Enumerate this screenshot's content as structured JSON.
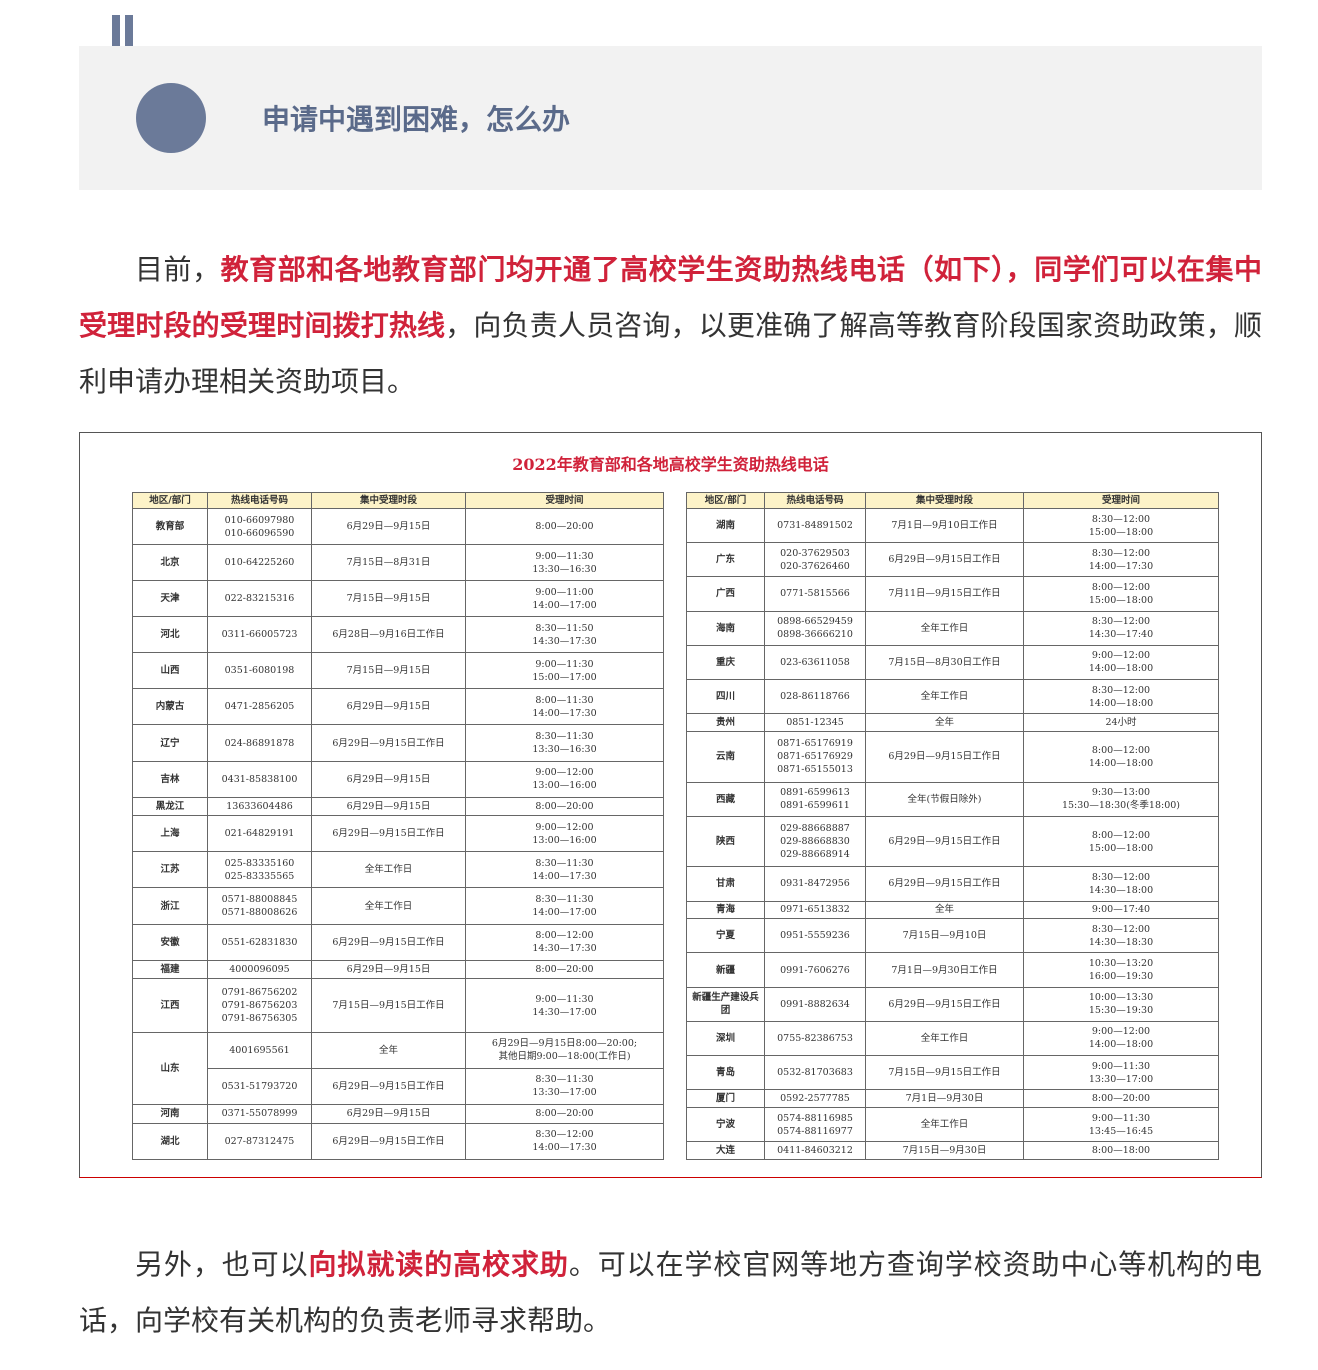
{
  "section": {
    "title": "申请中遇到困难，怎么办"
  },
  "paragraphs": [
    [
      {
        "text": "目前，"
      },
      {
        "text": "教育部和各地教育部门均开通了高校学生资助热线电话（如下），同学们可以在集中受理时段的受理时间拨打热线",
        "highlight": true
      },
      {
        "text": "，向负责人员咨询，以更准确了解高等教育阶段国家资助政策，顺利申请办理相关资助项目。"
      }
    ],
    [
      {
        "text": "另外，也可以"
      },
      {
        "text": "向拟就读的高校求助",
        "highlight": true
      },
      {
        "text": "。可以在学校官网等地方查询学校资助中心等机构的电话，向学校有关机构的负责老师寻求帮助。"
      }
    ]
  ],
  "figure": {
    "title": "2022年教育部和各地高校学生资助热线电话",
    "tables": [
      {
        "header": [
          "地区/部门",
          "热线电话号码",
          "集中受理时段",
          "受理时间"
        ],
        "rows": [
          {
            "region": "教育部",
            "entries": [
              [
                "010-66097980\n010-66096590",
                "6月29日—9月15日",
                "8:00—20:00"
              ]
            ]
          },
          {
            "region": "北京",
            "entries": [
              [
                "010-64225260",
                "7月15日—8月31日",
                "9:00—11:30\n13:30—16:30"
              ]
            ]
          },
          {
            "region": "天津",
            "entries": [
              [
                "022-83215316",
                "7月15日—9月15日",
                "9:00—11:00\n14:00—17:00"
              ]
            ]
          },
          {
            "region": "河北",
            "entries": [
              [
                "0311-66005723",
                "6月28日—9月16日工作日",
                "8:30—11:50\n14:30—17:30"
              ]
            ]
          },
          {
            "region": "山西",
            "entries": [
              [
                "0351-6080198",
                "7月15日—9月15日",
                "9:00—11:30\n15:00—17:00"
              ]
            ]
          },
          {
            "region": "内蒙古",
            "entries": [
              [
                "0471-2856205",
                "6月29日—9月15日",
                "8:00—11:30\n14:00—17:30"
              ]
            ]
          },
          {
            "region": "辽宁",
            "entries": [
              [
                "024-86891878",
                "6月29日—9月15日工作日",
                "8:30—11:30\n13:30—16:30"
              ]
            ]
          },
          {
            "region": "吉林",
            "entries": [
              [
                "0431-85838100",
                "6月29日—9月15日",
                "9:00—12:00\n13:00—16:00"
              ]
            ]
          },
          {
            "region": "黑龙江",
            "entries": [
              [
                "13633604486",
                "6月29日—9月15日",
                "8:00—20:00"
              ]
            ]
          },
          {
            "region": "上海",
            "entries": [
              [
                "021-64829191",
                "6月29日—9月15日工作日",
                "9:00—12:00\n13:00—16:00"
              ]
            ]
          },
          {
            "region": "江苏",
            "entries": [
              [
                "025-83335160\n025-83335565",
                "全年工作日",
                "8:30—11:30\n14:00—17:30"
              ]
            ]
          },
          {
            "region": "浙江",
            "entries": [
              [
                "0571-88008845\n0571-88008626",
                "全年工作日",
                "8:30—11:30\n14:00—17:00"
              ]
            ]
          },
          {
            "region": "安徽",
            "entries": [
              [
                "0551-62831830",
                "6月29日—9月15日工作日",
                "8:00—12:00\n14:30—17:30"
              ]
            ]
          },
          {
            "region": "福建",
            "entries": [
              [
                "4000096095",
                "6月29日—9月15日",
                "8:00—20:00"
              ]
            ]
          },
          {
            "region": "江西",
            "entries": [
              [
                "0791-86756202\n0791-86756203\n0791-86756305",
                "7月15日—9月15日工作日",
                "9:00—11:30\n14:30—17:00"
              ]
            ]
          },
          {
            "region": "山东",
            "entries": [
              [
                "4001695561",
                "全年",
                "6月29日—9月15日8:00—20:00;\n其他日期9:00—18:00(工作日)"
              ],
              [
                "0531-51793720",
                "6月29日—9月15日工作日",
                "8:30—11:30\n13:30—17:00"
              ]
            ]
          },
          {
            "region": "河南",
            "entries": [
              [
                "0371-55078999",
                "6月29日—9月15日",
                "8:00—20:00"
              ]
            ]
          },
          {
            "region": "湖北",
            "entries": [
              [
                "027-87312475",
                "6月29日—9月15日工作日",
                "8:30—12:00\n14:00—17:30"
              ]
            ]
          }
        ]
      },
      {
        "header": [
          "地区/部门",
          "热线电话号码",
          "集中受理时段",
          "受理时间"
        ],
        "rows": [
          {
            "region": "湖南",
            "entries": [
              [
                "0731-84891502",
                "7月1日—9月10日工作日",
                "8:30—12:00\n15:00—18:00"
              ]
            ]
          },
          {
            "region": "广东",
            "entries": [
              [
                "020-37629503\n020-37626460",
                "6月29日—9月15日工作日",
                "8:30—12:00\n14:00—17:30"
              ]
            ]
          },
          {
            "region": "广西",
            "entries": [
              [
                "0771-5815566",
                "7月11日—9月15日工作日",
                "8:00—12:00\n15:00—18:00"
              ]
            ]
          },
          {
            "region": "海南",
            "entries": [
              [
                "0898-66529459\n0898-36666210",
                "全年工作日",
                "8:30—12:00\n14:30—17:40"
              ]
            ]
          },
          {
            "region": "重庆",
            "entries": [
              [
                "023-63611058",
                "7月15日—8月30日工作日",
                "9:00—12:00\n14:00—18:00"
              ]
            ]
          },
          {
            "region": "四川",
            "entries": [
              [
                "028-86118766",
                "全年工作日",
                "8:30—12:00\n14:00—18:00"
              ]
            ]
          },
          {
            "region": "贵州",
            "entries": [
              [
                "0851-12345",
                "全年",
                "24小时"
              ]
            ]
          },
          {
            "region": "云南",
            "entries": [
              [
                "0871-65176919\n0871-65176929\n0871-65155013",
                "6月29日—9月15日工作日",
                "8:00—12:00\n14:00—18:00"
              ]
            ]
          },
          {
            "region": "西藏",
            "entries": [
              [
                "0891-6599613\n0891-6599611",
                "全年(节假日除外)",
                "9:30—13:00\n15:30—18:30(冬季18:00)"
              ]
            ]
          },
          {
            "region": "陕西",
            "entries": [
              [
                "029-88668887\n029-88668830\n029-88668914",
                "6月29日—9月15日工作日",
                "8:00—12:00\n15:00—18:00"
              ]
            ]
          },
          {
            "region": "甘肃",
            "entries": [
              [
                "0931-8472956",
                "6月29日—9月15日工作日",
                "8:30—12:00\n14:30—18:00"
              ]
            ]
          },
          {
            "region": "青海",
            "entries": [
              [
                "0971-6513832",
                "全年",
                "9:00—17:40"
              ]
            ]
          },
          {
            "region": "宁夏",
            "entries": [
              [
                "0951-5559236",
                "7月15日—9月10日",
                "8:30—12:00\n14:30—18:30"
              ]
            ]
          },
          {
            "region": "新疆",
            "entries": [
              [
                "0991-7606276",
                "7月1日—9月30日工作日",
                "10:30—13:20\n16:00—19:30"
              ]
            ]
          },
          {
            "region": "新疆生产建设兵团",
            "entries": [
              [
                "0991-8882634",
                "6月29日—9月15日工作日",
                "10:00—13:30\n15:30—19:30"
              ]
            ]
          },
          {
            "region": "深圳",
            "entries": [
              [
                "0755-82386753",
                "全年工作日",
                "9:00—12:00\n14:00—18:00"
              ]
            ]
          },
          {
            "region": "青岛",
            "entries": [
              [
                "0532-81703683",
                "7月15日—9月15日工作日",
                "9:00—11:30\n13:30—17:00"
              ]
            ]
          },
          {
            "region": "厦门",
            "entries": [
              [
                "0592-2577785",
                "7月1日—9月30日",
                "8:00—20:00"
              ]
            ]
          },
          {
            "region": "宁波",
            "entries": [
              [
                "0574-88116985\n0574-88116977",
                "全年工作日",
                "9:00—11:30\n13:45—16:45"
              ]
            ]
          },
          {
            "region": "大连",
            "entries": [
              [
                "0411-84603212",
                "7月15日—9月30日",
                "8:00—18:00"
              ]
            ]
          }
        ]
      }
    ]
  }
}
